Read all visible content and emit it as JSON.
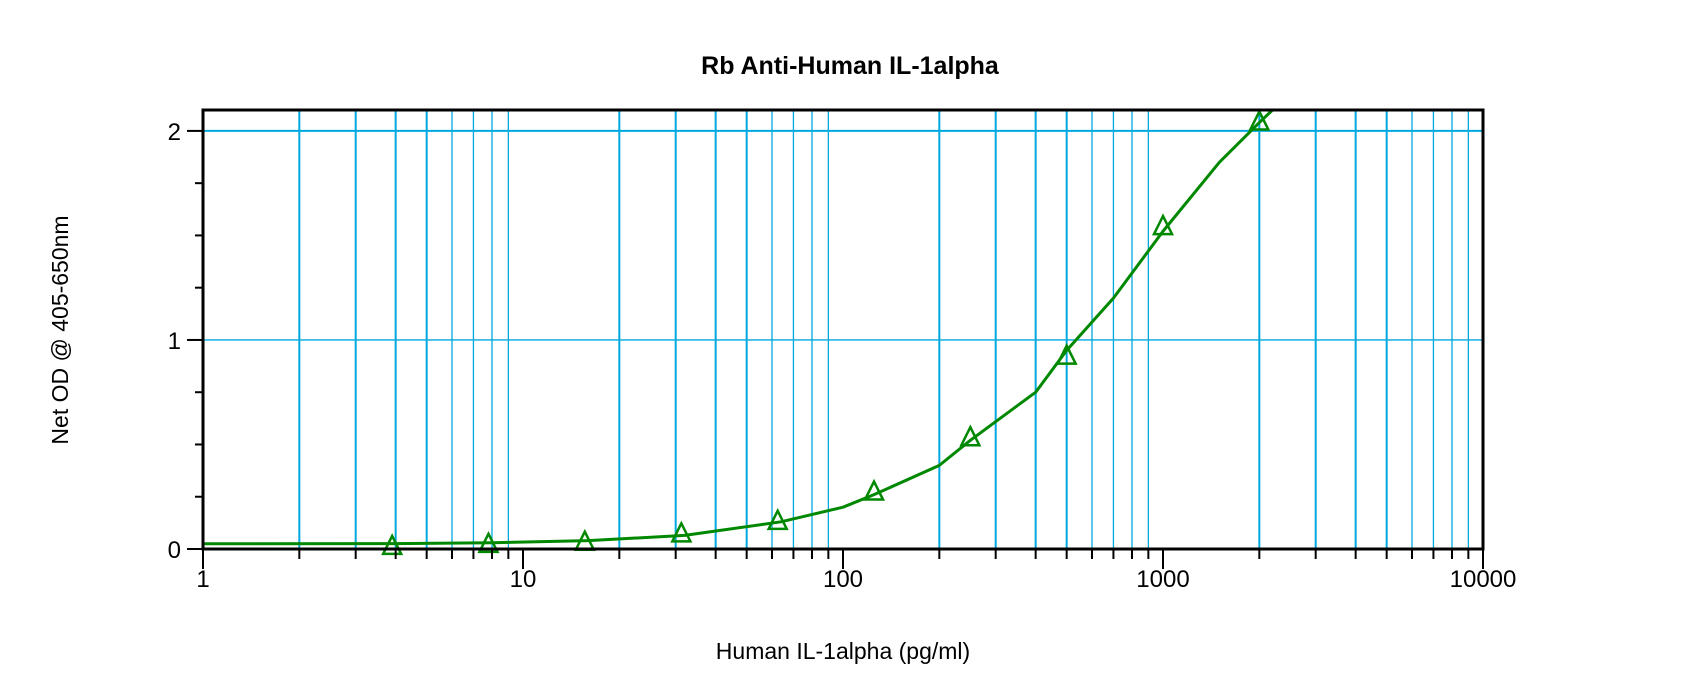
{
  "chart_data": {
    "type": "line",
    "title": "Rb Anti-Human IL-1alpha",
    "xlabel": "Human IL-1alpha (pg/ml)",
    "ylabel": "Net OD @ 405-650nm",
    "x_scale": "log",
    "xlim": [
      1,
      10000
    ],
    "ylim": [
      0,
      2.1
    ],
    "x_ticks": [
      "1",
      "10",
      "100",
      "1000",
      "10000"
    ],
    "y_ticks": [
      "0",
      "1",
      "2"
    ],
    "grid": true,
    "colors": {
      "series": "#008800",
      "grid": "#00a8e0",
      "axis": "#000000"
    },
    "series": [
      {
        "marker": "triangle",
        "x": [
          3.9,
          7.8,
          15.6,
          31.25,
          62.5,
          125,
          250,
          500,
          1000,
          2000
        ],
        "y": [
          0.01,
          0.02,
          0.03,
          0.07,
          0.13,
          0.27,
          0.53,
          0.92,
          1.54,
          2.04
        ]
      }
    ],
    "fit_curve": {
      "x": [
        1,
        4,
        8,
        16,
        32,
        64,
        100,
        125,
        200,
        250,
        400,
        500,
        700,
        1000,
        1500,
        2000,
        2200
      ],
      "y": [
        0.025,
        0.026,
        0.03,
        0.04,
        0.065,
        0.13,
        0.2,
        0.26,
        0.4,
        0.52,
        0.75,
        0.95,
        1.2,
        1.52,
        1.85,
        2.04,
        2.1
      ]
    }
  }
}
